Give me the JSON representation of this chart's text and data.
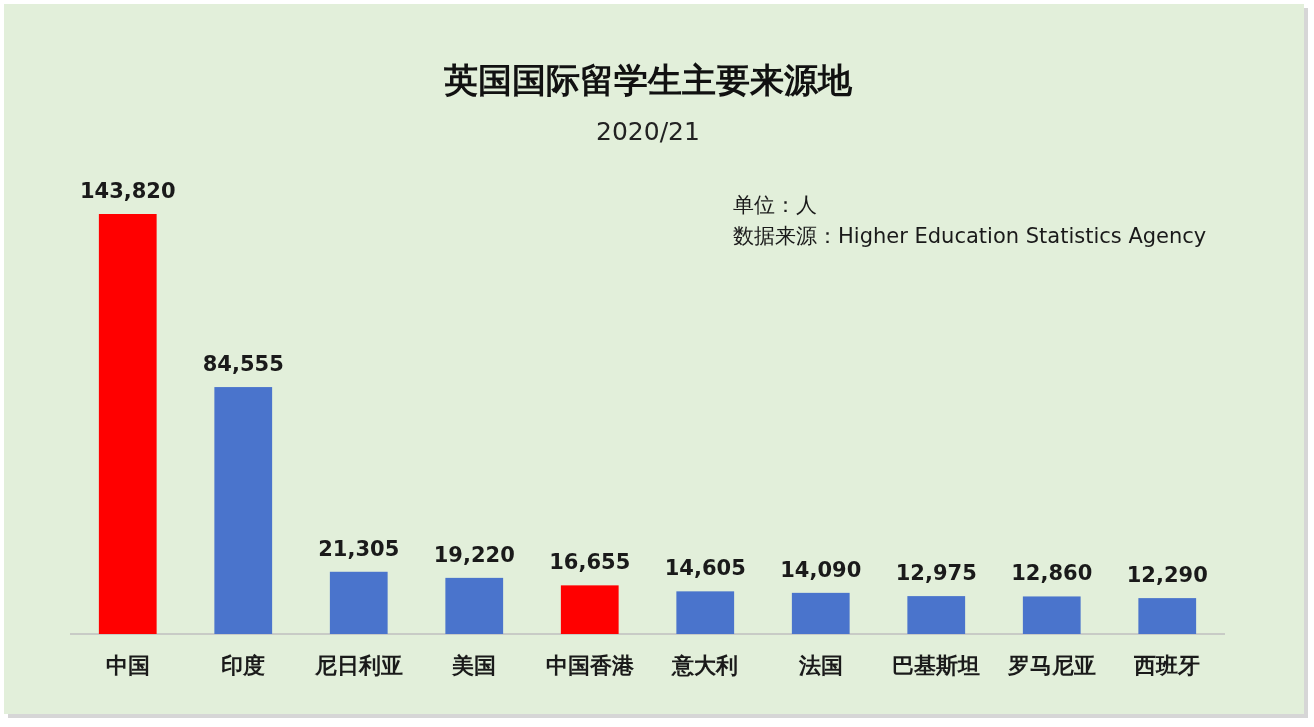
{
  "chart_data": {
    "type": "bar",
    "title": "英国国际留学生主要来源地",
    "subtitle": "2020/21",
    "annotations": [
      "单位：人",
      "数据来源：Higher Education Statistics Agency"
    ],
    "categories": [
      "中国",
      "印度",
      "尼日利亚",
      "美国",
      "中国香港",
      "意大利",
      "法国",
      "巴基斯坦",
      "罗马尼亚",
      "西班牙"
    ],
    "values": [
      143820,
      84555,
      21305,
      19220,
      16655,
      14605,
      14090,
      12975,
      12860,
      12290
    ],
    "colors": [
      "#ff0000",
      "#4a74cc",
      "#4a74cc",
      "#4a74cc",
      "#ff0000",
      "#4a74cc",
      "#4a74cc",
      "#4a74cc",
      "#4a74cc",
      "#4a74cc"
    ],
    "value_labels": [
      "143,820",
      "84,555",
      "21,305",
      "19,220",
      "16,655",
      "14,605",
      "14,090",
      "12,975",
      "12,860",
      "12,290"
    ]
  }
}
